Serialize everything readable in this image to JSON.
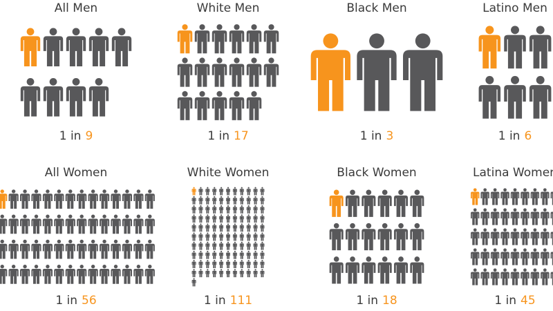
{
  "chart_data": {
    "type": "pictogram",
    "categories": [
      "All Men",
      "White Men",
      "Black Men",
      "Latino Men",
      "All Women",
      "White Women",
      "Black Women",
      "Latina Women"
    ],
    "values": [
      9,
      17,
      3,
      6,
      56,
      111,
      18,
      45
    ],
    "label_prefix": "1 in",
    "highlight_color": "#f7941d",
    "color": "#58585a"
  }
}
